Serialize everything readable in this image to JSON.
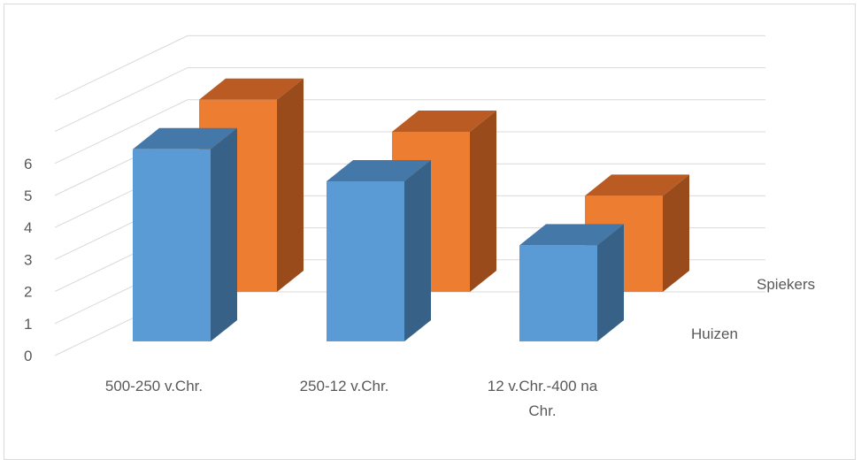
{
  "chart_data": {
    "type": "bar",
    "style": "3d-column",
    "categories": [
      "500-250 v.Chr.",
      "250-12 v.Chr.",
      "12 v.Chr.-400 na Chr."
    ],
    "category_lines": [
      [
        "500-250 v.Chr."
      ],
      [
        "250-12 v.Chr."
      ],
      [
        "12 v.Chr.-400 na",
        "Chr."
      ]
    ],
    "series": [
      {
        "name": "Huizen",
        "values": [
          6,
          5,
          3
        ],
        "color": "#5b9bd5"
      },
      {
        "name": "Spiekers",
        "values": [
          6,
          5,
          3
        ],
        "color": "#ed7d31"
      }
    ],
    "yticks": [
      "0",
      "1",
      "2",
      "3",
      "4",
      "5",
      "6"
    ],
    "ylim": [
      0,
      6
    ],
    "grid": true,
    "legend": "series labels on depth axis (right)",
    "title": "",
    "xlabel": "",
    "ylabel": ""
  },
  "colors": {
    "huizen_front": "#5b9bd5",
    "huizen_side": "#376187",
    "huizen_top": "#4478a8",
    "spiekers_front": "#ed7d31",
    "spiekers_side": "#9a4b1c",
    "spiekers_top": "#b95b22",
    "grid": "#d9d9d9",
    "text": "#595959"
  }
}
